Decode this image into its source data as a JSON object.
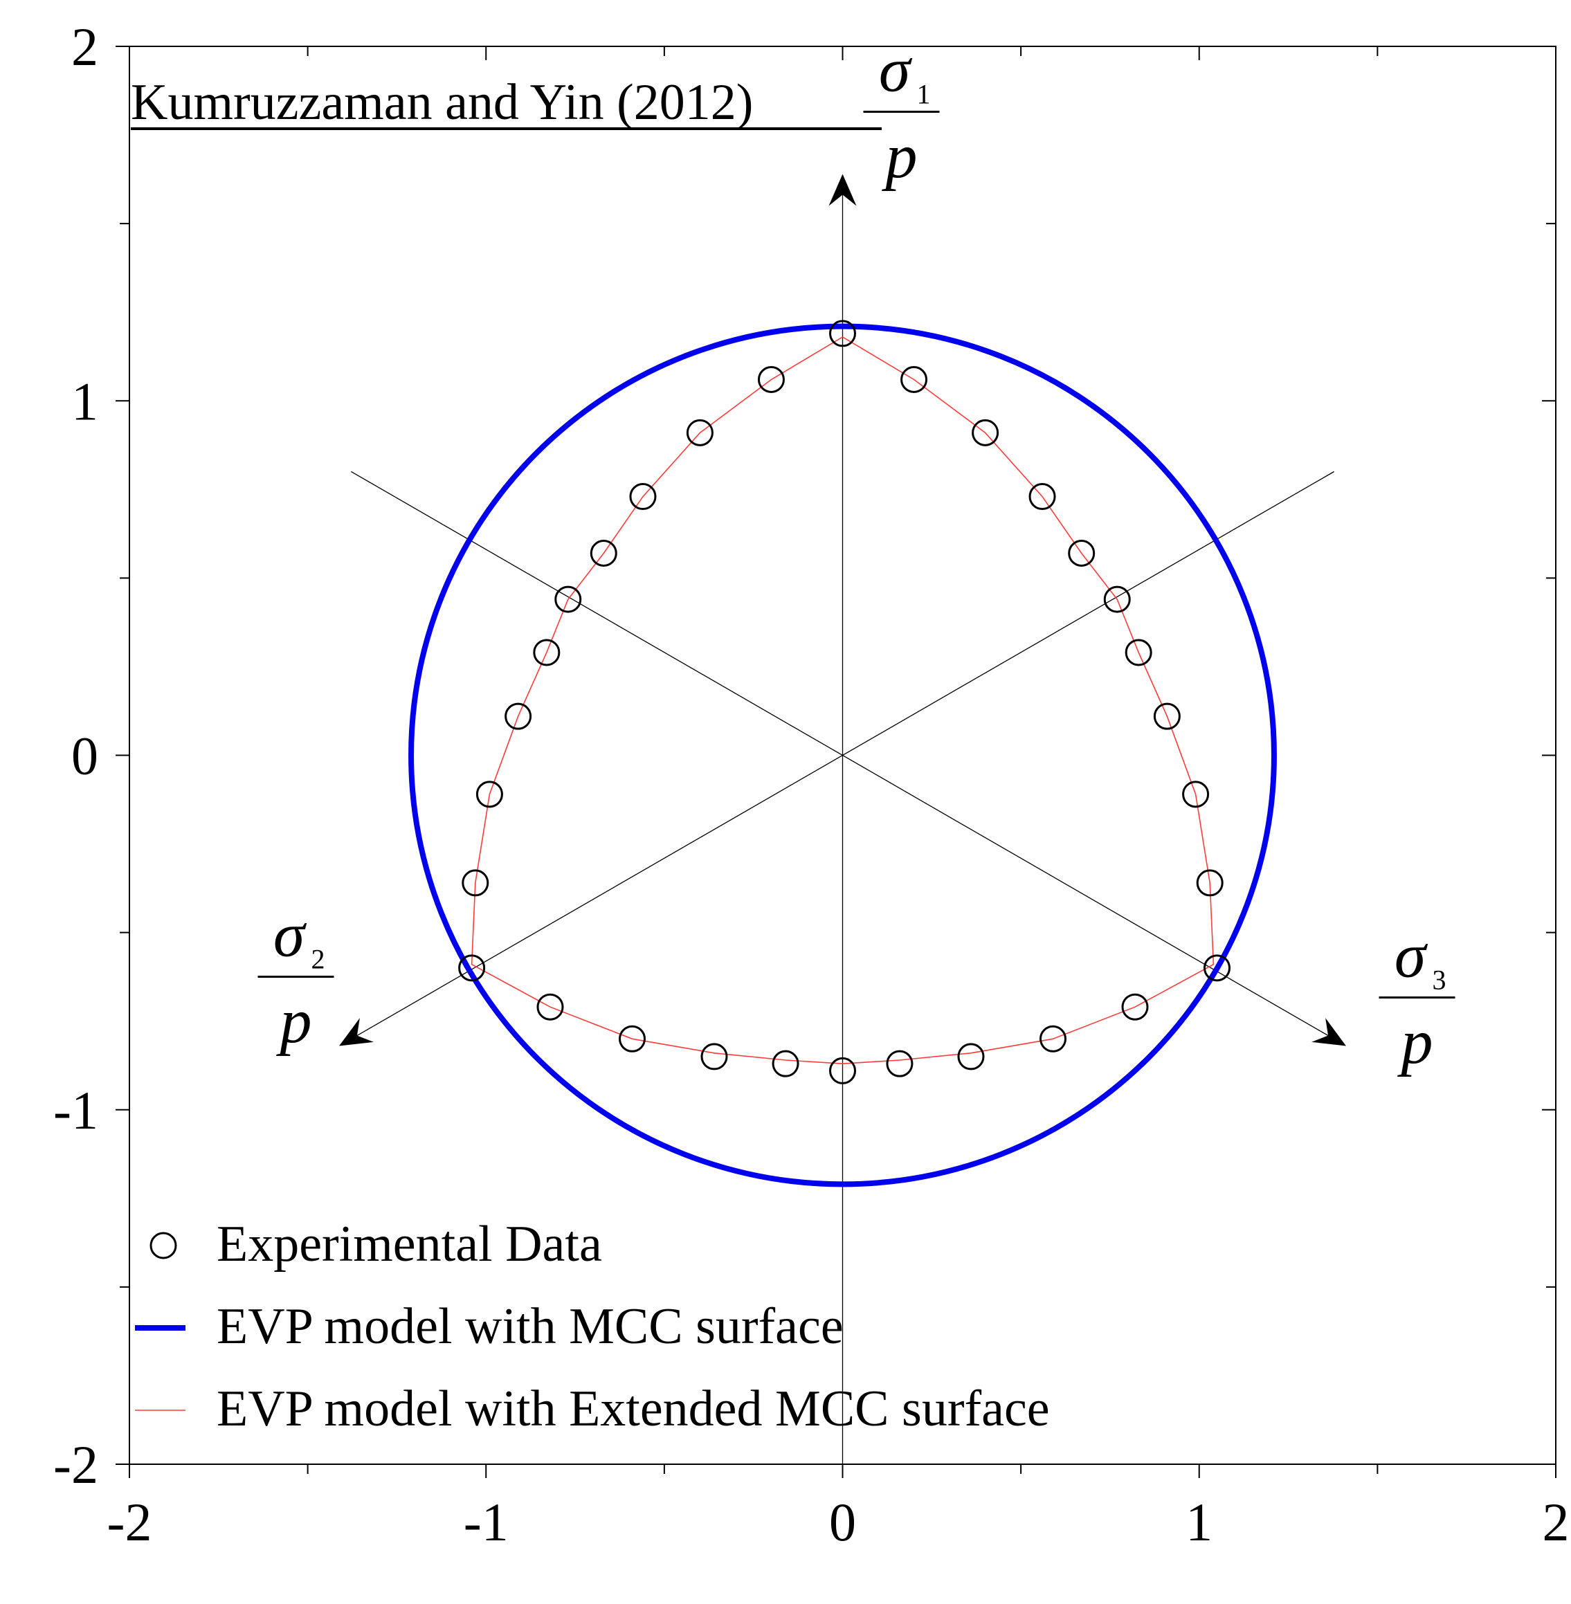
{
  "chart_data": {
    "type": "scatter",
    "title": "Kumruzzaman and Yin (2012)",
    "xlabel": "",
    "ylabel": "",
    "xlim": [
      -2,
      2
    ],
    "ylim": [
      -2,
      2
    ],
    "x_ticks": [
      "-2",
      "-1",
      "0",
      "1",
      "2"
    ],
    "y_ticks": [
      "2",
      "1",
      "0",
      "-1",
      "-2"
    ],
    "grid": false,
    "legend_position": "bottom-left",
    "principal_axes": [
      {
        "symbol": "σ",
        "subscript": "1",
        "denominator": "p",
        "angle_deg": 90
      },
      {
        "symbol": "σ",
        "subscript": "2",
        "denominator": "p",
        "angle_deg": 210
      },
      {
        "symbol": "σ",
        "subscript": "3",
        "denominator": "p",
        "angle_deg": 330
      }
    ],
    "series": [
      {
        "name": "Experimental Data",
        "kind": "points",
        "color": "#000000",
        "points": [
          [
            0.0,
            1.19
          ],
          [
            0.2,
            1.06
          ],
          [
            0.4,
            0.91
          ],
          [
            0.56,
            0.73
          ],
          [
            0.67,
            0.57
          ],
          [
            0.77,
            0.44
          ],
          [
            0.83,
            0.29
          ],
          [
            0.91,
            0.11
          ],
          [
            0.99,
            -0.11
          ],
          [
            1.03,
            -0.36
          ],
          [
            1.05,
            -0.6
          ],
          [
            0.82,
            -0.71
          ],
          [
            0.59,
            -0.8
          ],
          [
            0.36,
            -0.85
          ],
          [
            0.16,
            -0.87
          ],
          [
            0.0,
            -0.89
          ],
          [
            -0.16,
            -0.87
          ],
          [
            -0.36,
            -0.85
          ],
          [
            -0.59,
            -0.8
          ],
          [
            -0.82,
            -0.71
          ],
          [
            -1.04,
            -0.6
          ],
          [
            -1.03,
            -0.36
          ],
          [
            -0.99,
            -0.11
          ],
          [
            -0.91,
            0.11
          ],
          [
            -0.83,
            0.29
          ],
          [
            -0.77,
            0.44
          ],
          [
            -0.67,
            0.57
          ],
          [
            -0.56,
            0.73
          ],
          [
            -0.4,
            0.91
          ],
          [
            -0.2,
            1.06
          ]
        ]
      },
      {
        "name": "EVP model with MCC surface",
        "kind": "circle",
        "color": "#0000ee",
        "radius": 1.21
      },
      {
        "name": "EVP model with Extended MCC surface",
        "kind": "line",
        "color": "#ff3b3b",
        "points": [
          [
            0.0,
            1.18
          ],
          [
            0.2,
            1.06
          ],
          [
            0.4,
            0.91
          ],
          [
            0.56,
            0.73
          ],
          [
            0.67,
            0.57
          ],
          [
            0.77,
            0.44
          ],
          [
            0.83,
            0.29
          ],
          [
            0.91,
            0.11
          ],
          [
            0.99,
            -0.11
          ],
          [
            1.03,
            -0.36
          ],
          [
            1.04,
            -0.59
          ],
          [
            0.82,
            -0.71
          ],
          [
            0.59,
            -0.8
          ],
          [
            0.36,
            -0.84
          ],
          [
            0.16,
            -0.86
          ],
          [
            0.0,
            -0.87
          ],
          [
            -0.16,
            -0.86
          ],
          [
            -0.36,
            -0.84
          ],
          [
            -0.59,
            -0.8
          ],
          [
            -0.82,
            -0.71
          ],
          [
            -1.04,
            -0.59
          ],
          [
            -1.03,
            -0.36
          ],
          [
            -0.99,
            -0.11
          ],
          [
            -0.91,
            0.11
          ],
          [
            -0.83,
            0.29
          ],
          [
            -0.77,
            0.44
          ],
          [
            -0.67,
            0.57
          ],
          [
            -0.56,
            0.73
          ],
          [
            -0.4,
            0.91
          ],
          [
            -0.2,
            1.06
          ],
          [
            0.0,
            1.18
          ]
        ]
      }
    ]
  }
}
